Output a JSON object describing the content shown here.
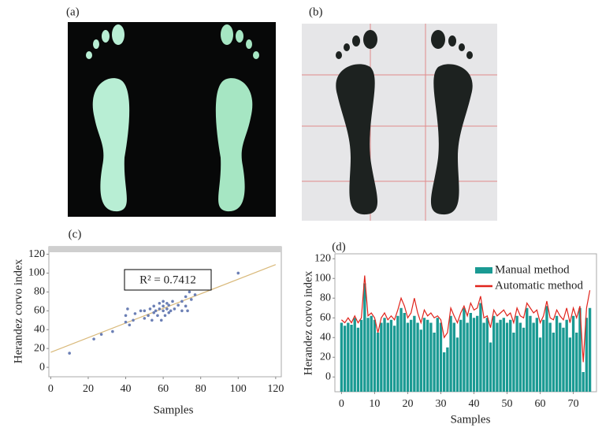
{
  "panels": {
    "a": "(a)",
    "b": "(b)"
  },
  "chart_data": [
    {
      "type": "scatter",
      "label": "(c)",
      "y_label": "Herandez corvo index",
      "x_label": "Samples",
      "annotation": "R² = 0.7412",
      "xlim": [
        -1,
        123
      ],
      "ylim": [
        -10,
        128
      ],
      "xticks": [
        0,
        20,
        40,
        60,
        80,
        100,
        120
      ],
      "yticks": [
        0,
        20,
        40,
        60,
        80,
        100,
        120
      ],
      "color": "#6b7fb5",
      "trend_color": "#d9b97a",
      "x": [
        10,
        23,
        27,
        33,
        40,
        40,
        41,
        42,
        44,
        45,
        48,
        50,
        50,
        52,
        53,
        54,
        55,
        55,
        56,
        57,
        58,
        58,
        59,
        60,
        60,
        60,
        61,
        62,
        62,
        63,
        63,
        64,
        65,
        66,
        68,
        70,
        70,
        72,
        72,
        73,
        74,
        75,
        77,
        100
      ],
      "values": [
        15,
        30,
        35,
        38,
        55,
        48,
        62,
        45,
        50,
        57,
        60,
        52,
        60,
        55,
        62,
        50,
        58,
        65,
        60,
        55,
        62,
        68,
        50,
        60,
        65,
        70,
        55,
        62,
        68,
        58,
        66,
        60,
        70,
        62,
        66,
        60,
        70,
        65,
        75,
        60,
        80,
        72,
        77,
        100
      ],
      "trendline": {
        "x": [
          0,
          120
        ],
        "y": [
          16,
          109
        ]
      }
    },
    {
      "type": "bar",
      "label": "(d)",
      "y_label": "Herandez corvo index",
      "x_label": "Samples",
      "xlim": [
        -2,
        77
      ],
      "ylim": [
        -15,
        125
      ],
      "xticks": [
        0,
        10,
        20,
        30,
        40,
        50,
        60,
        70
      ],
      "yticks": [
        0,
        20,
        40,
        60,
        80,
        100,
        120
      ],
      "legend": "top-right",
      "x": [
        0,
        1,
        2,
        3,
        4,
        5,
        6,
        7,
        8,
        9,
        10,
        11,
        12,
        13,
        14,
        15,
        16,
        17,
        18,
        19,
        20,
        21,
        22,
        23,
        24,
        25,
        26,
        27,
        28,
        29,
        30,
        31,
        32,
        33,
        34,
        35,
        36,
        37,
        38,
        39,
        40,
        41,
        42,
        43,
        44,
        45,
        46,
        47,
        48,
        49,
        50,
        51,
        52,
        53,
        54,
        55,
        56,
        57,
        58,
        59,
        60,
        61,
        62,
        63,
        64,
        65,
        66,
        67,
        68,
        69,
        70,
        71,
        72,
        73,
        74,
        75
      ],
      "series": [
        {
          "name": "Manual method",
          "type": "bar",
          "color": "#1a9a93",
          "values": [
            55,
            52,
            55,
            53,
            60,
            50,
            58,
            95,
            60,
            62,
            58,
            45,
            55,
            60,
            55,
            58,
            52,
            62,
            70,
            65,
            55,
            58,
            62,
            55,
            48,
            60,
            58,
            55,
            45,
            60,
            55,
            25,
            30,
            62,
            55,
            40,
            58,
            70,
            55,
            65,
            60,
            62,
            75,
            55,
            60,
            35,
            62,
            55,
            58,
            60,
            55,
            58,
            45,
            62,
            55,
            50,
            70,
            62,
            55,
            60,
            40,
            58,
            72,
            55,
            45,
            62,
            55,
            50,
            58,
            40,
            62,
            45,
            70,
            5,
            60,
            70
          ]
        },
        {
          "name": "Automatic method",
          "type": "line",
          "color": "#e0241c",
          "values": [
            58,
            55,
            60,
            55,
            62,
            55,
            60,
            103,
            62,
            65,
            60,
            45,
            60,
            65,
            58,
            62,
            58,
            68,
            80,
            72,
            60,
            65,
            80,
            65,
            55,
            68,
            62,
            65,
            60,
            62,
            58,
            40,
            45,
            70,
            62,
            55,
            65,
            72,
            62,
            75,
            68,
            70,
            82,
            60,
            62,
            50,
            68,
            62,
            65,
            68,
            62,
            65,
            55,
            70,
            62,
            60,
            75,
            70,
            65,
            68,
            55,
            62,
            77,
            60,
            58,
            68,
            62,
            58,
            70,
            55,
            70,
            60,
            72,
            15,
            70,
            88
          ]
        }
      ]
    }
  ]
}
